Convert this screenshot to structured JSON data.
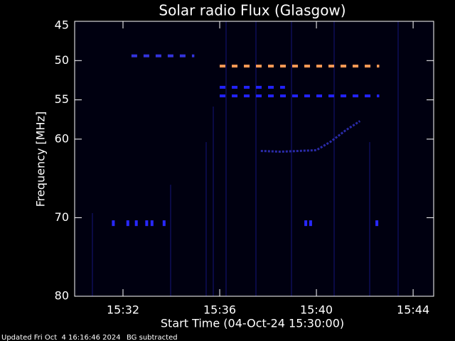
{
  "chart_data": {
    "type": "spectrogram",
    "title": "Solar radio Flux (Glasgow)",
    "x_label": "Start Time (04-Oct-24 15:30:00)",
    "y_label": "Frequency [MHz]",
    "footer": [
      "Updated Fri Oct  4 16:16:46 2024",
      "BG subtracted"
    ],
    "xlim": [
      0,
      14.85
    ],
    "xticks": [
      {
        "value": 2,
        "label": "15:32"
      },
      {
        "value": 6,
        "label": "15:36"
      },
      {
        "value": 10,
        "label": "15:40"
      },
      {
        "value": 14,
        "label": "15:44"
      }
    ],
    "ylim": [
      45,
      80
    ],
    "y_inverted": true,
    "yticks": [
      45,
      50,
      55,
      60,
      70,
      80
    ],
    "segments": [
      {
        "y": 50.7,
        "x": [
          6.0,
          12.6
        ],
        "color": "#ff9955",
        "dashed": true
      },
      {
        "y": 53.4,
        "x": [
          6.0,
          8.7
        ],
        "color": "#2222ff",
        "dashed": true
      },
      {
        "y": 54.5,
        "x": [
          6.0,
          12.6
        ],
        "color": "#2222ff",
        "dashed": true
      },
      {
        "y": 49.4,
        "x": [
          2.35,
          4.95
        ],
        "color": "#3333dd",
        "dashed": true
      }
    ],
    "points": {
      "color": "#2828ff",
      "x": [
        1.6,
        2.2,
        2.55,
        2.98,
        3.2,
        3.7,
        9.56,
        9.76,
        12.5
      ],
      "y": [
        70.7,
        70.7,
        70.7,
        70.7,
        70.7,
        70.7,
        70.7,
        70.7,
        70.7
      ]
    },
    "drift": {
      "color": "#2a2aa8",
      "x": [
        7.7,
        8.5,
        9.3,
        10.0,
        10.6,
        11.2,
        11.8
      ],
      "y": [
        61.5,
        61.6,
        61.5,
        61.4,
        60.3,
        58.9,
        57.7
      ]
    }
  }
}
